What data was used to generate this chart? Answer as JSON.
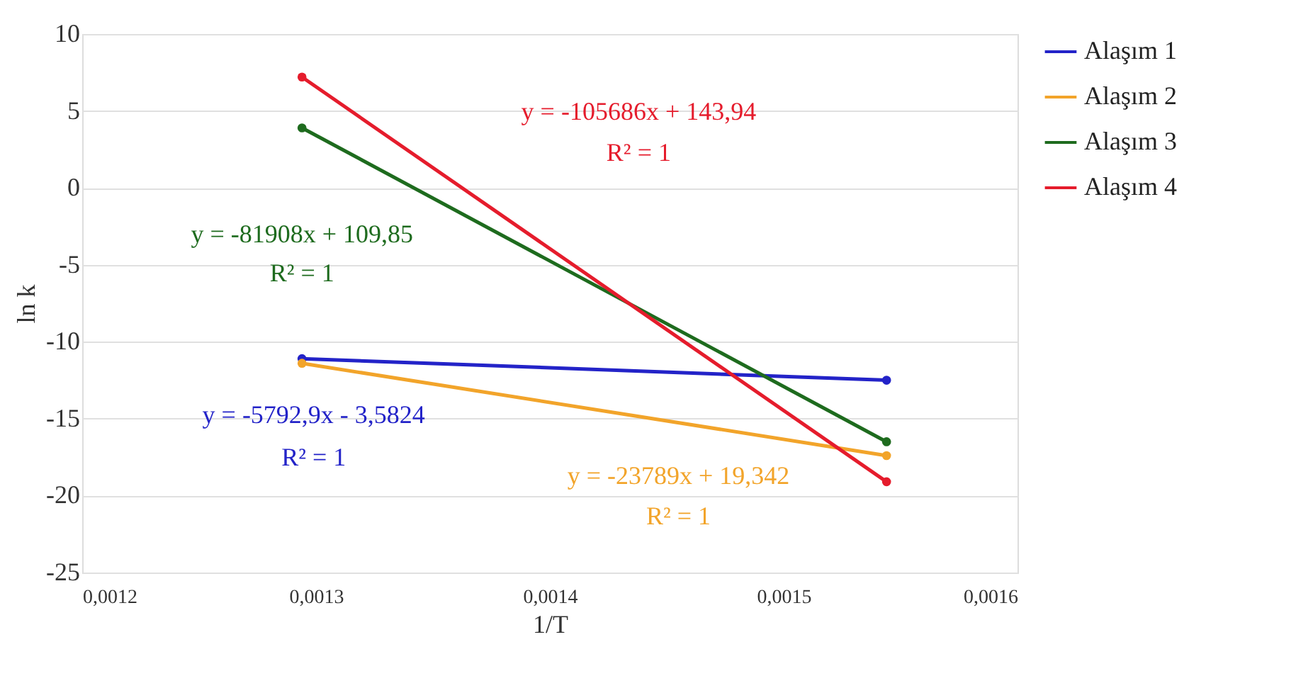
{
  "chart_data": {
    "type": "line",
    "xlabel": "1/T",
    "ylabel": "ln k",
    "x": [
      0.001294,
      0.001544
    ],
    "series": [
      {
        "name": "Alaşım 1",
        "color": "#2323c8",
        "values": [
          -11.1,
          -12.5
        ]
      },
      {
        "name": "Alaşım 2",
        "color": "#f2a42a",
        "values": [
          -11.4,
          -17.4
        ]
      },
      {
        "name": "Alaşım 3",
        "color": "#1e6b1e",
        "values": [
          3.9,
          -16.5
        ]
      },
      {
        "name": "Alaşım 4",
        "color": "#e51c2c",
        "values": [
          7.2,
          -19.1
        ]
      }
    ],
    "annotations": [
      "y = -5792,9x - 3,5824",
      "R² = 1",
      "y = -23789x + 19,342",
      "R² = 1",
      "y = -81908x + 109,85",
      "R² = 1",
      "y = -105686x + 143,94",
      "R² = 1"
    ],
    "xlim": [
      0.0012,
      0.0016
    ],
    "xticks": [
      {
        "value": 0.0012,
        "label": "0,0012"
      },
      {
        "value": 0.0013,
        "label": "0,0013"
      },
      {
        "value": 0.0014,
        "label": "0,0014"
      },
      {
        "value": 0.0015,
        "label": "0,0015"
      },
      {
        "value": 0.0016,
        "label": "0,0016"
      }
    ],
    "ylim": [
      -25,
      10
    ],
    "yticks": [
      -25,
      -20,
      -15,
      -10,
      -5,
      0,
      5,
      10
    ],
    "grid": "y",
    "legend": "right",
    "marker": "circle",
    "line_style": "solid"
  }
}
